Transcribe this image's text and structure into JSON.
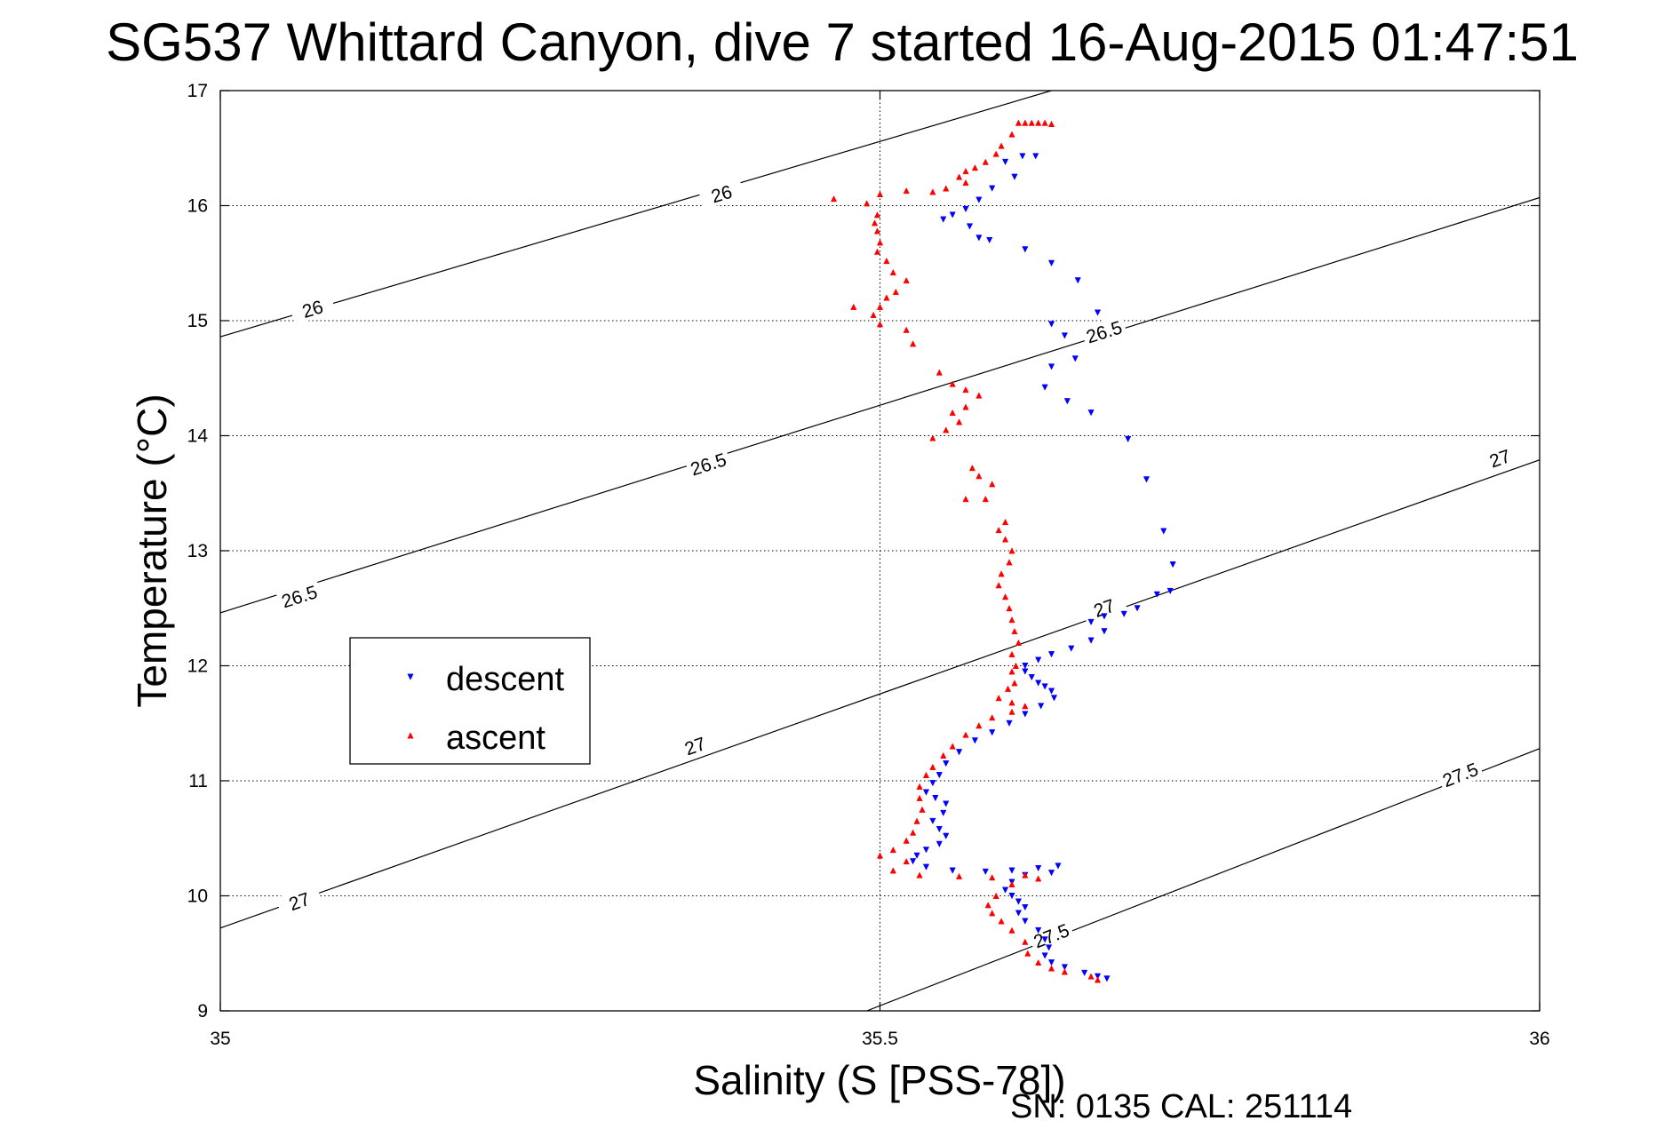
{
  "title": "SG537 Whittard Canyon, dive 7 started 16-Aug-2015 01:47:51",
  "footer": "SN: 0135  CAL: 251114",
  "colors": {
    "descent": "#0000ff",
    "ascent": "#ff0000",
    "axes": "#000000",
    "grid": "#000000"
  },
  "chart_data": {
    "type": "scatter",
    "title": "SG537 Whittard Canyon, dive 7 started 16-Aug-2015 01:47:51",
    "xlabel": "Salinity (S [PSS-78])",
    "ylabel": "Temperature (°C)",
    "xlim": [
      35,
      36
    ],
    "ylim": [
      9,
      17
    ],
    "xticks": [
      "35",
      "35.5",
      "36"
    ],
    "yticks": [
      "9",
      "10",
      "11",
      "12",
      "13",
      "14",
      "15",
      "16",
      "17"
    ],
    "grid": true,
    "legend": {
      "placement": "left-middle",
      "entries": [
        "descent",
        "ascent"
      ]
    },
    "contours": [
      {
        "level": "26",
        "line": [
          [
            35,
            14.86
          ],
          [
            35.63,
            17.0
          ]
        ],
        "labels": [
          [
            35.07,
            15.1
          ],
          [
            35.38,
            16.1
          ]
        ]
      },
      {
        "level": "26.5",
        "line": [
          [
            35,
            12.46
          ],
          [
            36,
            16.07
          ]
        ],
        "labels": [
          [
            35.06,
            12.6
          ],
          [
            35.37,
            13.75
          ],
          [
            35.67,
            14.9
          ]
        ]
      },
      {
        "level": "27",
        "line": [
          [
            35,
            9.72
          ],
          [
            36,
            13.79
          ]
        ],
        "labels": [
          [
            35.06,
            9.95
          ],
          [
            35.36,
            11.3
          ],
          [
            35.67,
            12.5
          ],
          [
            35.97,
            13.8
          ]
        ]
      },
      {
        "level": "27.5",
        "line": [
          [
            35.49,
            9.0
          ],
          [
            36,
            11.28
          ]
        ],
        "labels": [
          [
            35.63,
            9.65
          ],
          [
            35.94,
            11.05
          ]
        ]
      }
    ],
    "series": [
      {
        "name": "descent",
        "marker": "down-triangle",
        "points": [
          [
            35.608,
            16.43
          ],
          [
            35.618,
            16.43
          ],
          [
            35.595,
            16.38
          ],
          [
            35.602,
            16.25
          ],
          [
            35.585,
            16.15
          ],
          [
            35.575,
            16.05
          ],
          [
            35.565,
            15.97
          ],
          [
            35.555,
            15.92
          ],
          [
            35.548,
            15.88
          ],
          [
            35.568,
            15.82
          ],
          [
            35.575,
            15.72
          ],
          [
            35.583,
            15.7
          ],
          [
            35.61,
            15.62
          ],
          [
            35.63,
            15.5
          ],
          [
            35.65,
            15.35
          ],
          [
            35.665,
            15.07
          ],
          [
            35.63,
            14.97
          ],
          [
            35.64,
            14.87
          ],
          [
            35.648,
            14.67
          ],
          [
            35.63,
            14.6
          ],
          [
            35.625,
            14.42
          ],
          [
            35.642,
            14.3
          ],
          [
            35.66,
            14.2
          ],
          [
            35.688,
            13.97
          ],
          [
            35.702,
            13.62
          ],
          [
            35.715,
            13.17
          ],
          [
            35.722,
            12.88
          ],
          [
            35.72,
            12.65
          ],
          [
            35.71,
            12.62
          ],
          [
            35.695,
            12.5
          ],
          [
            35.685,
            12.45
          ],
          [
            35.67,
            12.43
          ],
          [
            35.66,
            12.38
          ],
          [
            35.67,
            12.3
          ],
          [
            35.66,
            12.22
          ],
          [
            35.645,
            12.15
          ],
          [
            35.63,
            12.1
          ],
          [
            35.62,
            12.05
          ],
          [
            35.61,
            12.0
          ],
          [
            35.61,
            11.95
          ],
          [
            35.615,
            11.9
          ],
          [
            35.62,
            11.85
          ],
          [
            35.625,
            11.82
          ],
          [
            35.63,
            11.78
          ],
          [
            35.632,
            11.72
          ],
          [
            35.622,
            11.65
          ],
          [
            35.61,
            11.58
          ],
          [
            35.598,
            11.5
          ],
          [
            35.585,
            11.42
          ],
          [
            35.572,
            11.35
          ],
          [
            35.56,
            11.25
          ],
          [
            35.55,
            11.15
          ],
          [
            35.545,
            11.05
          ],
          [
            35.54,
            10.98
          ],
          [
            35.535,
            10.9
          ],
          [
            35.542,
            10.85
          ],
          [
            35.55,
            10.8
          ],
          [
            35.548,
            10.72
          ],
          [
            35.54,
            10.65
          ],
          [
            35.545,
            10.58
          ],
          [
            35.55,
            10.52
          ],
          [
            35.545,
            10.45
          ],
          [
            35.535,
            10.4
          ],
          [
            35.528,
            10.35
          ],
          [
            35.525,
            10.3
          ],
          [
            35.535,
            10.25
          ],
          [
            35.555,
            10.22
          ],
          [
            35.58,
            10.21
          ],
          [
            35.6,
            10.22
          ],
          [
            35.62,
            10.24
          ],
          [
            35.635,
            10.26
          ],
          [
            35.63,
            10.2
          ],
          [
            35.61,
            10.18
          ],
          [
            35.6,
            10.12
          ],
          [
            35.595,
            10.05
          ],
          [
            35.6,
            10.0
          ],
          [
            35.605,
            9.95
          ],
          [
            35.61,
            9.9
          ],
          [
            35.605,
            9.85
          ],
          [
            35.61,
            9.78
          ],
          [
            35.62,
            9.7
          ],
          [
            35.625,
            9.62
          ],
          [
            35.628,
            9.55
          ],
          [
            35.625,
            9.48
          ],
          [
            35.63,
            9.42
          ],
          [
            35.64,
            9.38
          ],
          [
            35.655,
            9.33
          ],
          [
            35.665,
            9.3
          ],
          [
            35.672,
            9.28
          ]
        ]
      },
      {
        "name": "ascent",
        "marker": "up-triangle",
        "points": [
          [
            35.605,
            16.72
          ],
          [
            35.61,
            16.72
          ],
          [
            35.615,
            16.72
          ],
          [
            35.62,
            16.72
          ],
          [
            35.625,
            16.72
          ],
          [
            35.63,
            16.71
          ],
          [
            35.6,
            16.62
          ],
          [
            35.592,
            16.52
          ],
          [
            35.588,
            16.45
          ],
          [
            35.58,
            16.38
          ],
          [
            35.572,
            16.33
          ],
          [
            35.565,
            16.3
          ],
          [
            35.56,
            16.25
          ],
          [
            35.565,
            16.2
          ],
          [
            35.55,
            16.15
          ],
          [
            35.54,
            16.12
          ],
          [
            35.52,
            16.13
          ],
          [
            35.5,
            16.1
          ],
          [
            35.465,
            16.06
          ],
          [
            35.49,
            16.02
          ],
          [
            35.498,
            15.92
          ],
          [
            35.496,
            15.85
          ],
          [
            35.498,
            15.78
          ],
          [
            35.5,
            15.68
          ],
          [
            35.498,
            15.6
          ],
          [
            35.505,
            15.52
          ],
          [
            35.51,
            15.42
          ],
          [
            35.52,
            15.35
          ],
          [
            35.512,
            15.25
          ],
          [
            35.505,
            15.2
          ],
          [
            35.5,
            15.12
          ],
          [
            35.48,
            15.12
          ],
          [
            35.495,
            15.05
          ],
          [
            35.5,
            14.97
          ],
          [
            35.52,
            14.92
          ],
          [
            35.525,
            14.8
          ],
          [
            35.545,
            14.55
          ],
          [
            35.555,
            14.45
          ],
          [
            35.565,
            14.4
          ],
          [
            35.575,
            14.35
          ],
          [
            35.565,
            14.25
          ],
          [
            35.555,
            14.2
          ],
          [
            35.56,
            14.12
          ],
          [
            35.55,
            14.05
          ],
          [
            35.54,
            13.98
          ],
          [
            35.57,
            13.72
          ],
          [
            35.575,
            13.65
          ],
          [
            35.585,
            13.58
          ],
          [
            35.565,
            13.45
          ],
          [
            35.58,
            13.45
          ],
          [
            35.595,
            13.25
          ],
          [
            35.59,
            13.18
          ],
          [
            35.595,
            13.1
          ],
          [
            35.6,
            13.0
          ],
          [
            35.598,
            12.9
          ],
          [
            35.592,
            12.8
          ],
          [
            35.59,
            12.7
          ],
          [
            35.595,
            12.6
          ],
          [
            35.598,
            12.5
          ],
          [
            35.6,
            12.4
          ],
          [
            35.602,
            12.3
          ],
          [
            35.605,
            12.2
          ],
          [
            35.6,
            12.1
          ],
          [
            35.603,
            12.0
          ],
          [
            35.6,
            11.95
          ],
          [
            35.602,
            11.85
          ],
          [
            35.597,
            11.8
          ],
          [
            35.59,
            11.72
          ],
          [
            35.6,
            11.68
          ],
          [
            35.61,
            11.65
          ],
          [
            35.6,
            11.6
          ],
          [
            35.585,
            11.55
          ],
          [
            35.575,
            11.48
          ],
          [
            35.565,
            11.4
          ],
          [
            35.555,
            11.3
          ],
          [
            35.548,
            11.22
          ],
          [
            35.54,
            11.12
          ],
          [
            35.535,
            11.05
          ],
          [
            35.53,
            10.95
          ],
          [
            35.53,
            10.85
          ],
          [
            35.532,
            10.75
          ],
          [
            35.528,
            10.65
          ],
          [
            35.525,
            10.55
          ],
          [
            35.52,
            10.48
          ],
          [
            35.51,
            10.4
          ],
          [
            35.5,
            10.35
          ],
          [
            35.52,
            10.3
          ],
          [
            35.51,
            10.22
          ],
          [
            35.53,
            10.18
          ],
          [
            35.56,
            10.17
          ],
          [
            35.585,
            10.16
          ],
          [
            35.61,
            10.18
          ],
          [
            35.62,
            10.15
          ],
          [
            35.6,
            10.1
          ],
          [
            35.588,
            10.0
          ],
          [
            35.582,
            9.92
          ],
          [
            35.585,
            9.85
          ],
          [
            35.592,
            9.78
          ],
          [
            35.6,
            9.7
          ],
          [
            35.61,
            9.6
          ],
          [
            35.612,
            9.5
          ],
          [
            35.62,
            9.42
          ],
          [
            35.63,
            9.37
          ],
          [
            35.64,
            9.34
          ],
          [
            35.66,
            9.3
          ],
          [
            35.665,
            9.27
          ]
        ]
      }
    ]
  }
}
